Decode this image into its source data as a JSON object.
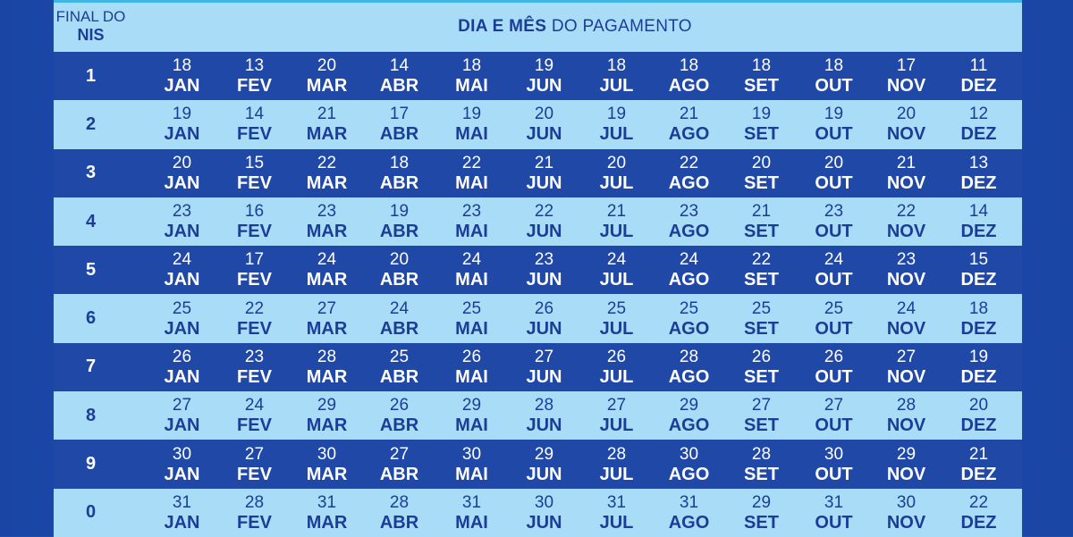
{
  "header": {
    "nis_line1": "FINAL DO",
    "nis_line2": "NIS",
    "title_bold": "DIA E MÊS",
    "title_rest": " DO PAGAMENTO"
  },
  "months": [
    "JAN",
    "FEV",
    "MAR",
    "ABR",
    "MAI",
    "JUN",
    "JUL",
    "AGO",
    "SET",
    "OUT",
    "NOV",
    "DEZ"
  ],
  "rows": [
    {
      "nis": "1",
      "days": [
        "18",
        "13",
        "20",
        "14",
        "18",
        "19",
        "18",
        "18",
        "18",
        "18",
        "17",
        "11"
      ]
    },
    {
      "nis": "2",
      "days": [
        "19",
        "14",
        "21",
        "17",
        "19",
        "20",
        "19",
        "21",
        "19",
        "19",
        "20",
        "12"
      ]
    },
    {
      "nis": "3",
      "days": [
        "20",
        "15",
        "22",
        "18",
        "22",
        "21",
        "20",
        "22",
        "20",
        "20",
        "21",
        "13"
      ]
    },
    {
      "nis": "4",
      "days": [
        "23",
        "16",
        "23",
        "19",
        "23",
        "22",
        "21",
        "23",
        "21",
        "23",
        "22",
        "14"
      ]
    },
    {
      "nis": "5",
      "days": [
        "24",
        "17",
        "24",
        "20",
        "24",
        "23",
        "24",
        "24",
        "22",
        "24",
        "23",
        "15"
      ]
    },
    {
      "nis": "6",
      "days": [
        "25",
        "22",
        "27",
        "24",
        "25",
        "26",
        "25",
        "25",
        "25",
        "25",
        "24",
        "18"
      ]
    },
    {
      "nis": "7",
      "days": [
        "26",
        "23",
        "28",
        "25",
        "26",
        "27",
        "26",
        "28",
        "26",
        "26",
        "27",
        "19"
      ]
    },
    {
      "nis": "8",
      "days": [
        "27",
        "24",
        "29",
        "26",
        "29",
        "28",
        "27",
        "29",
        "27",
        "27",
        "28",
        "20"
      ]
    },
    {
      "nis": "9",
      "days": [
        "30",
        "27",
        "30",
        "27",
        "30",
        "29",
        "28",
        "30",
        "28",
        "30",
        "29",
        "21"
      ]
    },
    {
      "nis": "0",
      "days": [
        "31",
        "28",
        "31",
        "28",
        "31",
        "30",
        "31",
        "31",
        "29",
        "31",
        "30",
        "22"
      ]
    }
  ],
  "colors": {
    "dark_row": "#1f48a7",
    "light_row": "#a9dcf7",
    "background": "#1f4fae",
    "dark_text": "#1b3d98",
    "light_text": "#ffffff"
  }
}
